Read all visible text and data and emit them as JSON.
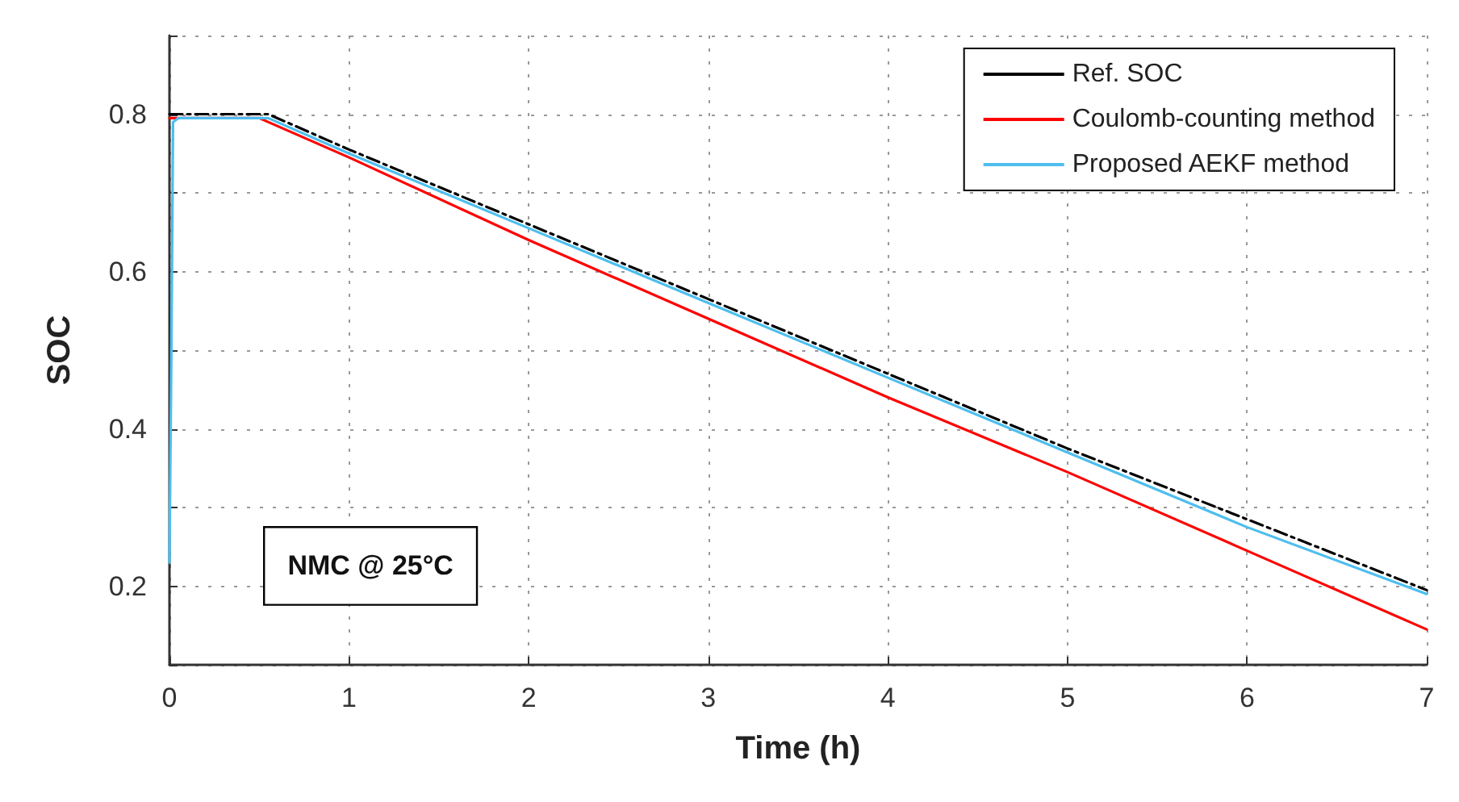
{
  "chart_data": {
    "type": "line",
    "xlabel": "Time (h)",
    "ylabel": "SOC",
    "annotations": [
      "NMC @ 25°C"
    ],
    "xlim": [
      0,
      7
    ],
    "xticks": [
      0,
      1,
      2,
      3,
      4,
      5,
      6,
      7
    ],
    "ylim": [
      0.1,
      0.9
    ],
    "yticks": [
      {
        "value": 0.1,
        "label": null
      },
      0.2,
      {
        "value": 0.3,
        "label": null
      },
      0.4,
      {
        "value": 0.5,
        "label": null
      },
      0.6,
      {
        "value": 0.7,
        "label": null
      },
      0.8,
      {
        "value": 0.9,
        "label": null
      }
    ],
    "grid": true,
    "legend": "top right",
    "marker": "none",
    "series": [
      {
        "name": "Ref. SOC",
        "color": "#000000",
        "line_style": "dashed",
        "x": [
          0,
          0.55,
          1,
          2,
          3,
          4,
          5,
          6,
          7
        ],
        "values": [
          0.8,
          0.8,
          0.755,
          0.66,
          0.565,
          0.47,
          0.375,
          0.285,
          0.195
        ]
      },
      {
        "name": "Coulomb-counting method",
        "color": "#ff0000",
        "x": [
          0,
          0.5,
          1,
          2,
          3,
          4,
          5,
          6,
          7
        ],
        "values": [
          0.795,
          0.795,
          0.745,
          0.64,
          0.54,
          0.44,
          0.345,
          0.245,
          0.145
        ]
      },
      {
        "name": "Proposed AEKF method",
        "color": "#4dbeee",
        "x": [
          0,
          0.01,
          0.02,
          0.05,
          0.55,
          1,
          2,
          3,
          4,
          5,
          6,
          7
        ],
        "values": [
          0.23,
          0.48,
          0.79,
          0.795,
          0.795,
          0.75,
          0.655,
          0.56,
          0.465,
          0.37,
          0.275,
          0.19
        ]
      }
    ]
  }
}
